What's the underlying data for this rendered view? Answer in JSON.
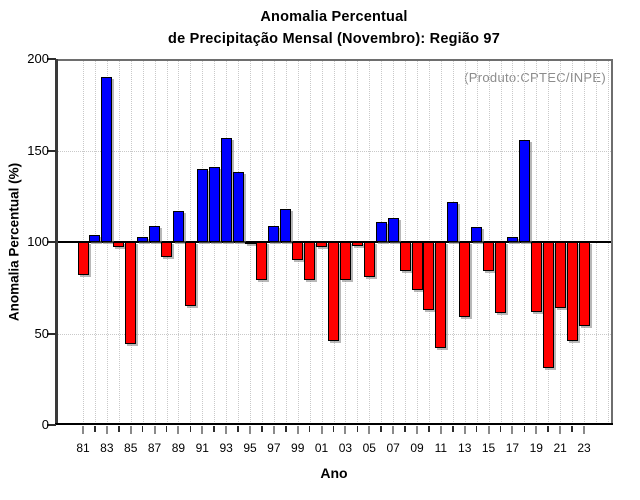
{
  "header": {
    "title_line1": "Anomalia Percentual",
    "title_line2": "de Precipitação Mensal (Novembro): Região 97"
  },
  "source_note": "(Produto:CPTEC/INPE)",
  "chart_data": {
    "type": "bar",
    "title": "Anomalia Percentual de Precipitação Mensal (Novembro): Região 97",
    "xlabel": "Ano",
    "ylabel": "Anomalia Percentual (%)",
    "ylim": [
      0,
      200
    ],
    "y_ticks": [
      0,
      50,
      100,
      150,
      200
    ],
    "y_tick_labels": [
      "0",
      "50",
      "100",
      "150",
      "200"
    ],
    "baseline": 100,
    "grid": "dotted",
    "legend_position": "none",
    "annotation": "(Produto:CPTEC/INPE)",
    "x": [
      1981,
      1982,
      1983,
      1984,
      1985,
      1986,
      1987,
      1988,
      1989,
      1990,
      1991,
      1992,
      1993,
      1994,
      1995,
      1996,
      1997,
      1998,
      1999,
      2000,
      2001,
      2002,
      2003,
      2004,
      2005,
      2006,
      2007,
      2008,
      2009,
      2010,
      2011,
      2012,
      2013,
      2014,
      2015,
      2016,
      2017,
      2018,
      2019,
      2020,
      2021,
      2022,
      2023
    ],
    "values": [
      82,
      104,
      190,
      97,
      44,
      103,
      109,
      92,
      117,
      65,
      140,
      141,
      157,
      138,
      99,
      79,
      109,
      118,
      90,
      79,
      97,
      46,
      79,
      98,
      81,
      111,
      113,
      84,
      74,
      63,
      42,
      122,
      59,
      108,
      84,
      61,
      103,
      156,
      62,
      31,
      64,
      46,
      54
    ],
    "x_tick_labels": [
      "81",
      "83",
      "85",
      "87",
      "89",
      "91",
      "93",
      "95",
      "97",
      "99",
      "01",
      "03",
      "05",
      "07",
      "09",
      "11",
      "13",
      "15",
      "17",
      "19",
      "21",
      "23"
    ],
    "colors": {
      "above_baseline": "#0000ff",
      "below_baseline": "#ff0000",
      "bar_outline": "#000000",
      "note_gray": "#8c8c8c",
      "grid_gray": "#c9c9c9"
    }
  }
}
